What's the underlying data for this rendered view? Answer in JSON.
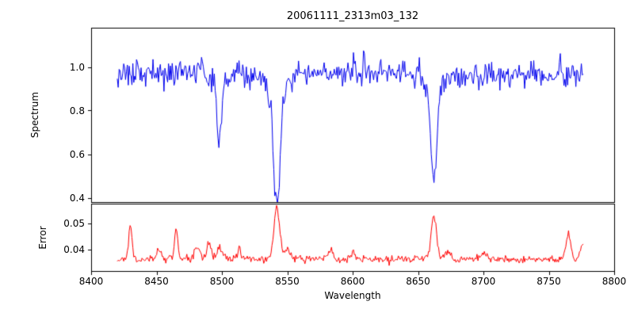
{
  "figure": {
    "background": "#ffffff",
    "axis_color": "#000000"
  },
  "chart_data": {
    "type": "line",
    "title": "20061111_2313m03_132",
    "xlabel": "Wavelength",
    "grid": false,
    "legend": false,
    "xlim": [
      8400,
      8800
    ],
    "x_data_range": [
      8420,
      8777
    ],
    "x_step": 0.7,
    "xticks": [
      {
        "value": 8400,
        "label": "8400"
      },
      {
        "value": 8450,
        "label": "8450"
      },
      {
        "value": 8500,
        "label": "8500"
      },
      {
        "value": 8550,
        "label": "8550"
      },
      {
        "value": 8600,
        "label": "8600"
      },
      {
        "value": 8650,
        "label": "8650"
      },
      {
        "value": 8700,
        "label": "8700"
      },
      {
        "value": 8750,
        "label": "8750"
      },
      {
        "value": 8800,
        "label": "8800"
      }
    ],
    "panels": [
      {
        "name": "spectrum",
        "ylabel": "Spectrum",
        "line_color": "#0000ee",
        "ylim": [
          0.38,
          1.18
        ],
        "yticks": [
          {
            "value": 0.4,
            "label": "0.4"
          },
          {
            "value": 0.6,
            "label": "0.6"
          },
          {
            "value": 0.8,
            "label": "0.8"
          },
          {
            "value": 1.0,
            "label": "1.0"
          }
        ],
        "continuum": 0.97,
        "noise_to_error_ratio": 0.8,
        "absorption_lines": [
          {
            "center": 8498,
            "depth": 0.31,
            "width": 1.6
          },
          {
            "center": 8498,
            "depth": 0.04,
            "width": 5.0
          },
          {
            "center": 8542,
            "depth": 0.47,
            "width": 2.6
          },
          {
            "center": 8542,
            "depth": 0.1,
            "width": 7.0
          },
          {
            "center": 8662,
            "depth": 0.47,
            "width": 2.2
          },
          {
            "center": 8662,
            "depth": 0.07,
            "width": 6.0
          }
        ]
      },
      {
        "name": "error",
        "ylabel": "Error",
        "line_color": "#ff0000",
        "ylim": [
          0.032,
          0.0575
        ],
        "yticks": [
          {
            "value": 0.04,
            "label": "0.04"
          },
          {
            "value": 0.05,
            "label": "0.05"
          }
        ],
        "baseline": 0.0365,
        "noise_sigma": 0.0007,
        "peaks": [
          {
            "center": 8430,
            "height": 0.0135,
            "width": 1.2
          },
          {
            "center": 8452,
            "height": 0.003,
            "width": 2.0
          },
          {
            "center": 8465,
            "height": 0.0115,
            "width": 1.3
          },
          {
            "center": 8481,
            "height": 0.004,
            "width": 2.0
          },
          {
            "center": 8490,
            "height": 0.0065,
            "width": 1.5
          },
          {
            "center": 8498,
            "height": 0.0045,
            "width": 2.0
          },
          {
            "center": 8513,
            "height": 0.003,
            "width": 2.0
          },
          {
            "center": 8542,
            "height": 0.0195,
            "width": 2.2
          },
          {
            "center": 8550,
            "height": 0.004,
            "width": 2.0
          },
          {
            "center": 8583,
            "height": 0.0035,
            "width": 2.0
          },
          {
            "center": 8600,
            "height": 0.002,
            "width": 2.0
          },
          {
            "center": 8662,
            "height": 0.0165,
            "width": 2.0
          },
          {
            "center": 8672,
            "height": 0.003,
            "width": 2.0
          },
          {
            "center": 8700,
            "height": 0.002,
            "width": 2.0
          },
          {
            "center": 8765,
            "height": 0.0095,
            "width": 1.8
          },
          {
            "center": 8776,
            "height": 0.0065,
            "width": 1.5
          }
        ]
      }
    ]
  }
}
